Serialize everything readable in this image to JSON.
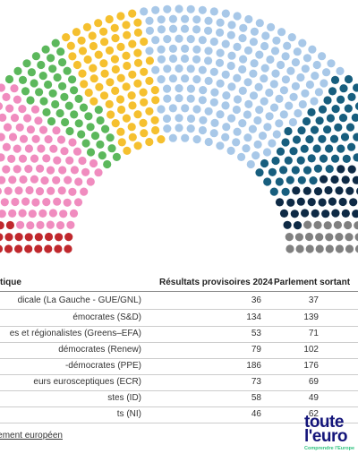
{
  "table": {
    "headers": {
      "group": "tique",
      "results_2024": "Résultats provisoires 2024",
      "outgoing": "Parlement sortant"
    }
  },
  "footer": {
    "source_link": "lement européen"
  },
  "logo": {
    "line1": "toute",
    "line2": "l'euro",
    "tagline": "Comprendre l'Europe"
  },
  "chart_data": {
    "type": "parliament",
    "title": "",
    "categories": [
      "dicale (La Gauche - GUE/GNL)",
      "émocrates (S&D)",
      "es et régionalistes (Greens–EFA)",
      "démocrates (Renew)",
      "-démocrates (PPE)",
      "eurs eurosceptiques (ECR)",
      "stes (ID)",
      "ts (NI)"
    ],
    "series": [
      {
        "name": "Résultats provisoires 2024",
        "values": [
          36,
          134,
          53,
          79,
          186,
          73,
          58,
          46
        ]
      },
      {
        "name": "Parlement sortant",
        "values": [
          37,
          139,
          71,
          102,
          176,
          69,
          49,
          62
        ]
      }
    ],
    "hemicycle_order": [
      "GUE/NGL",
      "S&D",
      "Greens-EFA",
      "Renew",
      "PPE",
      "ECR",
      "ID",
      "NI"
    ],
    "colors": [
      "#c0282d",
      "#f08cbf",
      "#5cb85c",
      "#f5c02f",
      "#a8c8e8",
      "#175e7e",
      "#0e2a45",
      "#808080",
      "#d3d3d3"
    ]
  }
}
